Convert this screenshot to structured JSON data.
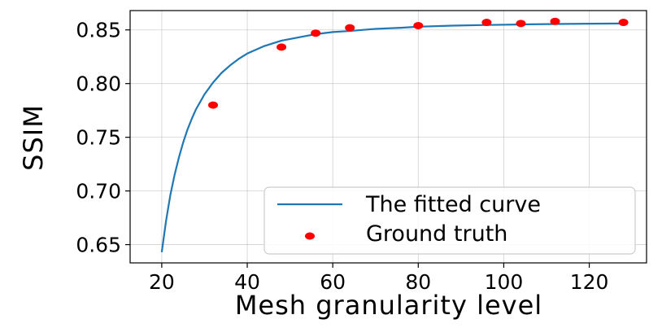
{
  "chart_data": {
    "type": "scatter",
    "xlabel": "Mesh granularity level",
    "ylabel": "SSIM",
    "xlim": [
      12.6,
      133.4
    ],
    "ylim": [
      0.633,
      0.868
    ],
    "xticks": [
      20,
      40,
      60,
      80,
      100,
      120
    ],
    "yticks": [
      0.65,
      0.7,
      0.75,
      0.8,
      0.85
    ],
    "xtick_labels": [
      "20",
      "40",
      "60",
      "80",
      "100",
      "120"
    ],
    "ytick_labels": [
      "0.65",
      "0.70",
      "0.75",
      "0.80",
      "0.85"
    ],
    "grid": true,
    "legend_position": "lower-right",
    "series": [
      {
        "name": "The fitted curve",
        "kind": "line",
        "color": "#1f77b4",
        "x": [
          20,
          21,
          22,
          23,
          24,
          25,
          26,
          27,
          28,
          30,
          32,
          34,
          36,
          38,
          40,
          44,
          48,
          52,
          56,
          60,
          64,
          70,
          76,
          80,
          88,
          96,
          104,
          112,
          120,
          128
        ],
        "y": [
          0.643,
          0.672,
          0.696,
          0.715,
          0.731,
          0.745,
          0.757,
          0.767,
          0.776,
          0.79,
          0.801,
          0.81,
          0.817,
          0.823,
          0.828,
          0.835,
          0.84,
          0.843,
          0.846,
          0.848,
          0.849,
          0.851,
          0.852,
          0.853,
          0.854,
          0.8546,
          0.8551,
          0.8555,
          0.8558,
          0.856
        ]
      },
      {
        "name": "Ground truth",
        "kind": "scatter",
        "color": "#ff0000",
        "x": [
          32,
          48,
          56,
          64,
          80,
          96,
          104,
          112,
          128
        ],
        "y": [
          0.78,
          0.834,
          0.847,
          0.852,
          0.854,
          0.857,
          0.856,
          0.858,
          0.857
        ]
      }
    ]
  }
}
